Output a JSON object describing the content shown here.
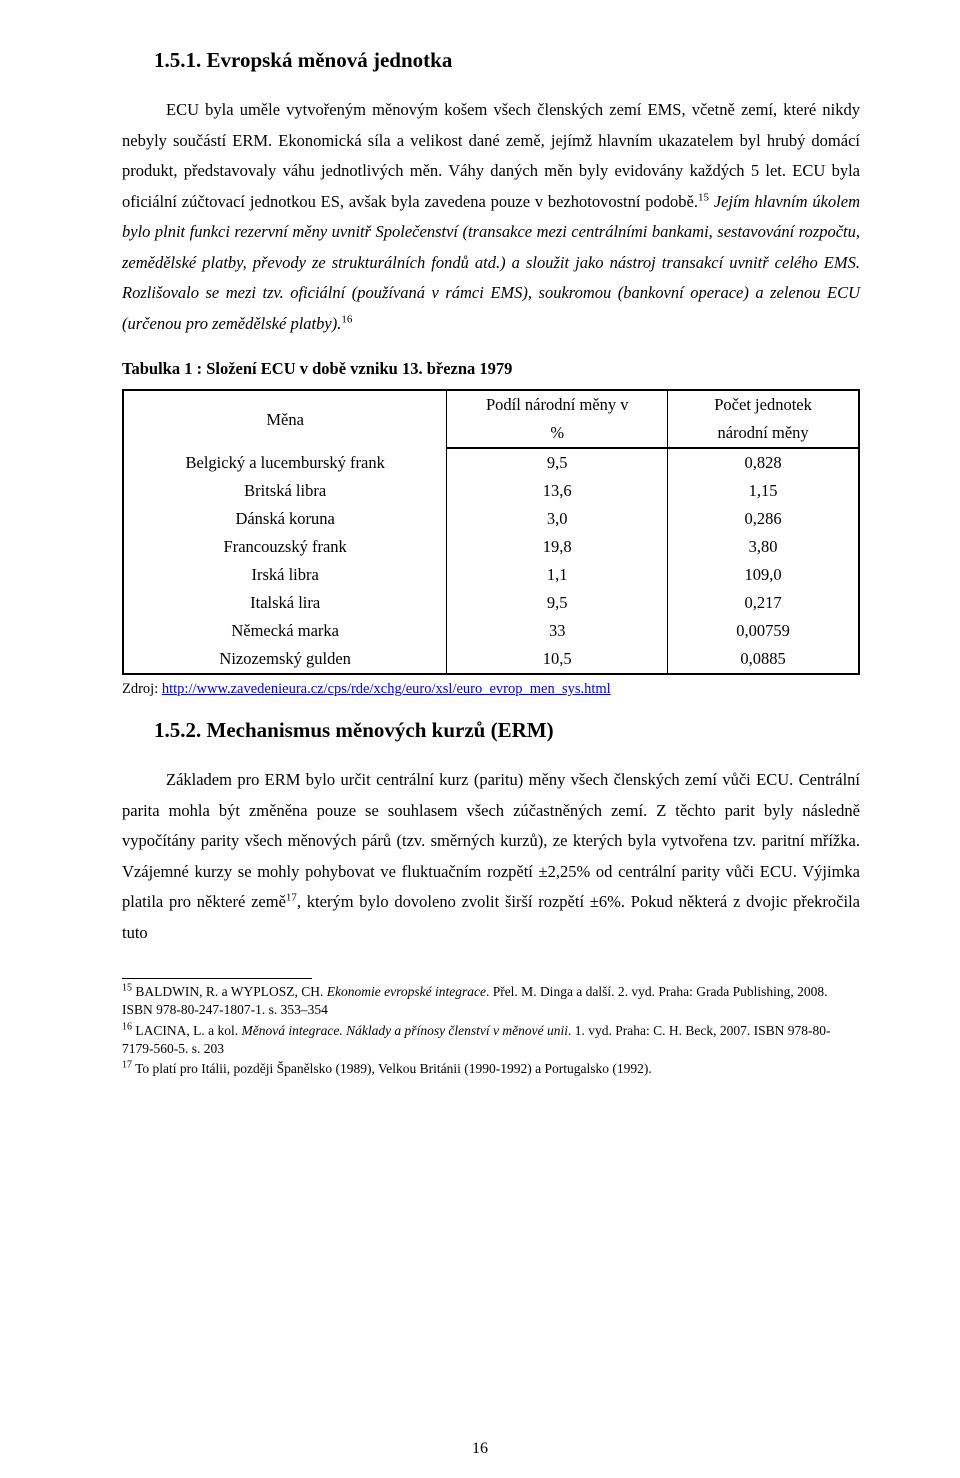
{
  "section1": {
    "heading": "1.5.1. Evropská měnová jednotka",
    "para_html": "ECU byla uměle vytvořeným měnovým košem všech členských zemí EMS, včetně zemí, které nikdy nebyly součástí ERM. Ekonomická síla a velikost dané země, jejímž hlavním ukazatelem byl hrubý domácí produkt, představovaly váhu jednotlivých měn. Váhy daných měn byly evidovány každých 5 let. ECU byla oficiální zúčtovací jednotkou ES, avšak byla zavedena pouze v bezhotovostní podobě.<span class=\"sup\">15</span> <span class=\"italic\">Jejím hlavním úkolem bylo plnit funkci rezervní měny uvnitř Společenství (transakce mezi centrálními bankami, sestavování rozpočtu, zemědělské platby, převody ze strukturálních fondů atd.) a sloužit jako nástroj transakcí uvnitř celého EMS. Rozlišovalo se mezi tzv. oficiální (používaná v rámci EMS), soukromou (bankovní operace) a zelenou ECU (určenou pro zemědělské platby).</span><span class=\"sup\">16</span>"
  },
  "table": {
    "caption": "Tabulka 1 : Složení ECU v době vzniku 13. března 1979",
    "header": {
      "c1": "Měna",
      "c2a": "Podíl národní měny v",
      "c2b": "%",
      "c3a": "Počet jednotek",
      "c3b": "národní měny"
    },
    "rows": [
      {
        "name": "Belgický a lucemburský frank",
        "share": "9,5",
        "units": "0,828"
      },
      {
        "name": "Britská libra",
        "share": "13,6",
        "units": "1,15"
      },
      {
        "name": "Dánská koruna",
        "share": "3,0",
        "units": "0,286"
      },
      {
        "name": "Francouzský frank",
        "share": "19,8",
        "units": "3,80"
      },
      {
        "name": "Irská libra",
        "share": "1,1",
        "units": "109,0"
      },
      {
        "name": "Italská lira",
        "share": "9,5",
        "units": "0,217"
      },
      {
        "name": "Německá marka",
        "share": "33",
        "units": "0,00759"
      },
      {
        "name": "Nizozemský gulden",
        "share": "10,5",
        "units": "0,0885"
      }
    ],
    "source_label": "Zdroj: ",
    "source_url": "http://www.zavedenieura.cz/cps/rde/xchg/euro/xsl/euro_evrop_men_sys.html"
  },
  "section2": {
    "heading": "1.5.2. Mechanismus měnových kurzů (ERM)",
    "para_html": "Základem pro ERM bylo určit centrální kurz (paritu) měny všech členských zemí vůči ECU. Centrální parita mohla být změněna pouze se souhlasem všech zúčastněných zemí. Z těchto parit byly následně vypočítány parity všech měnových párů (tzv. směrných kurzů), ze kterých byla vytvořena tzv. paritní mřížka. Vzájemné kurzy se mohly pohybovat ve fluktuačním rozpětí ±2,25% od centrální parity vůči ECU. Výjimka platila pro některé země<span class=\"sup\">17</span>, kterým bylo dovoleno zvolit širší rozpětí ±6%. Pokud některá z dvojic překročila tuto"
  },
  "footnotes": {
    "fn15": "<span class=\"sup\">15</span> BALDWIN, R. a WYPLOSZ, CH. <span class=\"italic\">Ekonomie evropské integrace</span>. Přel. M. Dinga a další. 2. vyd. Praha: Grada Publishing, 2008. ISBN 978-80-247-1807-1. s. 353–354",
    "fn16": "<span class=\"sup\">16</span> LACINA, L. a kol. <span class=\"italic\">Měnová integrace. Náklady a přínosy členství v měnové unii</span>. 1. vyd. Praha: C. H. Beck, 2007. ISBN 978-80-7179-560-5. s. 203",
    "fn17": "<span class=\"sup\">17</span> To platí pro Itálii, později Španělsko (1989), Velkou Británii (1990-1992) a Portugalsko (1992)."
  },
  "pagenum": "16"
}
